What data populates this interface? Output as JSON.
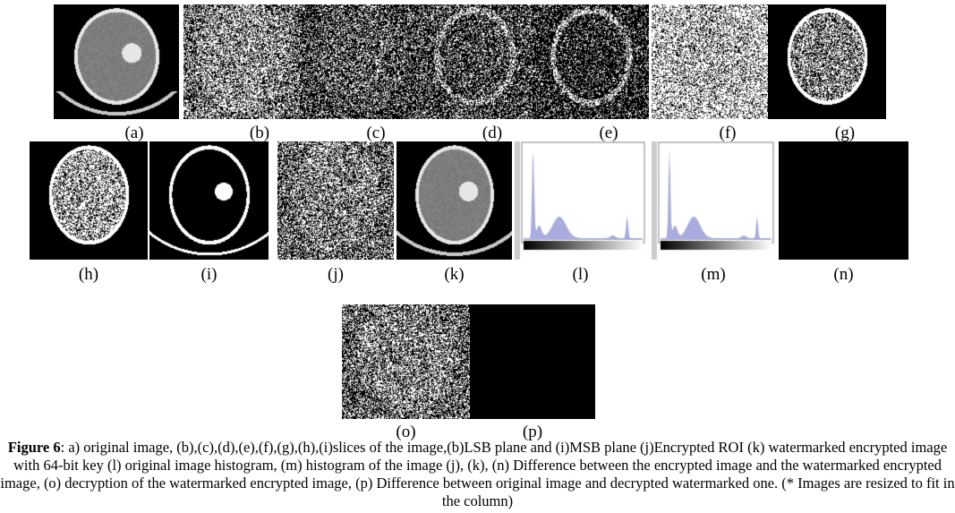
{
  "panels": [
    {
      "id": "a",
      "label": "(a)"
    },
    {
      "id": "b",
      "label": "(b)"
    },
    {
      "id": "c",
      "label": "(c)"
    },
    {
      "id": "d",
      "label": "(d)"
    },
    {
      "id": "e",
      "label": "(e)"
    },
    {
      "id": "f",
      "label": "(f)"
    },
    {
      "id": "g",
      "label": "(g)"
    },
    {
      "id": "h",
      "label": "(h)"
    },
    {
      "id": "i",
      "label": "(i)"
    },
    {
      "id": "j",
      "label": "(j)"
    },
    {
      "id": "k",
      "label": "(k)"
    },
    {
      "id": "l",
      "label": "(l)"
    },
    {
      "id": "m",
      "label": "(m)"
    },
    {
      "id": "n",
      "label": "(n)"
    },
    {
      "id": "o",
      "label": "(o)"
    },
    {
      "id": "p",
      "label": "(p)"
    }
  ],
  "caption": {
    "prefix": "Figure 6",
    "text": ": a) original image, (b),(c),(d),(e),(f),(g),(h),(i)slices of the image,(b)LSB plane and (i)MSB plane (j)Encrypted ROI (k) watermarked encrypted image with 64-bit key (l) original image histogram, (m) histogram of the  image (j), (k), (n) Difference between the encrypted image and the watermarked encrypted image, (o) decryption of the watermarked encrypted image, (p) Difference between original image and decrypted watermarked one. (* Images are resized to fit in the column)"
  },
  "colors": {
    "histogram_fill": "#a9acdc"
  }
}
